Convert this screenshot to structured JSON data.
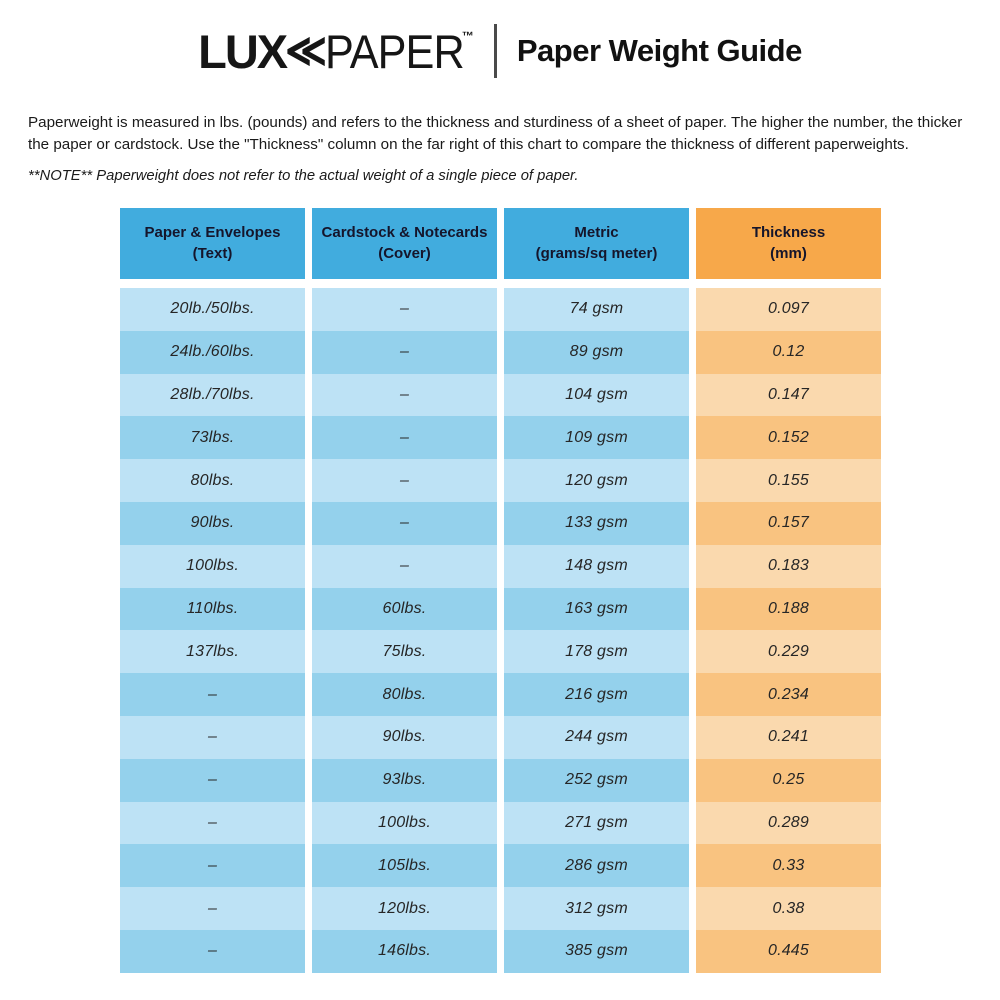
{
  "logo": {
    "lux": "LUX",
    "chevrons": "≪",
    "paper": "PAPER",
    "tm": "™"
  },
  "header": {
    "title": "Paper Weight Guide"
  },
  "intro": {
    "paragraph": "Paperweight is measured in lbs. (pounds) and refers to the thickness and sturdiness of a sheet of paper. The higher the number, the thicker the paper or cardstock. Use the \"Thickness\" column on the far right of this chart to compare the thickness of different paperweights.",
    "note": "**NOTE** Paperweight does not refer to the actual weight of a single piece of paper."
  },
  "colors": {
    "headerBlue": "#41ACDE",
    "headerOrange": "#F7A84A",
    "lightBlue": "#BDE2F5",
    "darkBlue": "#94D1EC",
    "lightPeach": "#FAD9AE",
    "darkPeach": "#F9C380"
  },
  "table": {
    "columns": [
      {
        "title": "Paper & Envelopes",
        "subtitle": "(Text)"
      },
      {
        "title": "Cardstock & Notecards",
        "subtitle": "(Cover)"
      },
      {
        "title": "Metric",
        "subtitle": "(grams/sq meter)"
      },
      {
        "title": "Thickness",
        "subtitle": "(mm)"
      }
    ],
    "rows": [
      [
        "20lb./50lbs.",
        "–",
        "74 gsm",
        "0.097"
      ],
      [
        "24lb./60lbs.",
        "–",
        "89 gsm",
        "0.12"
      ],
      [
        "28lb./70lbs.",
        "–",
        "104 gsm",
        "0.147"
      ],
      [
        "73lbs.",
        "–",
        "109 gsm",
        "0.152"
      ],
      [
        "80lbs.",
        "–",
        "120 gsm",
        "0.155"
      ],
      [
        "90lbs.",
        "–",
        "133 gsm",
        "0.157"
      ],
      [
        "100lbs.",
        "–",
        "148 gsm",
        "0.183"
      ],
      [
        "110lbs.",
        "60lbs.",
        "163 gsm",
        "0.188"
      ],
      [
        "137lbs.",
        "75lbs.",
        "178 gsm",
        "0.229"
      ],
      [
        "–",
        "80lbs.",
        "216 gsm",
        "0.234"
      ],
      [
        "–",
        "90lbs.",
        "244 gsm",
        "0.241"
      ],
      [
        "–",
        "93lbs.",
        "252 gsm",
        "0.25"
      ],
      [
        "–",
        "100lbs.",
        "271 gsm",
        "0.289"
      ],
      [
        "–",
        "105lbs.",
        "286 gsm",
        "0.33"
      ],
      [
        "–",
        "120lbs.",
        "312 gsm",
        "0.38"
      ],
      [
        "–",
        "146lbs.",
        "385 gsm",
        "0.445"
      ]
    ]
  }
}
